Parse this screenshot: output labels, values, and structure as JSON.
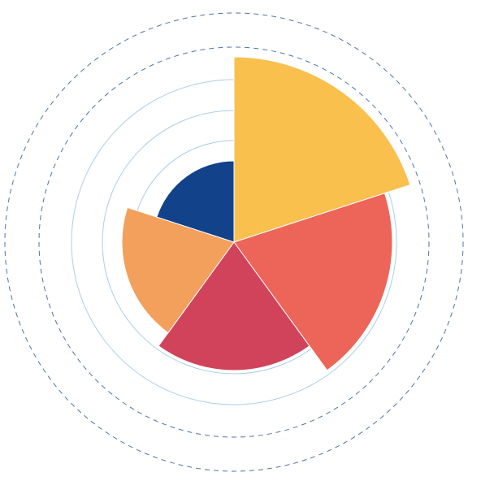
{
  "chart_data": {
    "type": "polar_area",
    "categories": [
      null,
      null,
      null,
      null,
      null
    ],
    "series": [
      {
        "values": [
          228,
          195,
          158,
          138,
          100
        ],
        "colors": [
          "#f9c04e",
          "#ec6558",
          "#d1435b",
          "#f3a05c",
          "#12428a"
        ]
      }
    ],
    "ylim": [
      0,
      300
    ],
    "yticks": [
      125,
      162,
      200
    ],
    "outer_rings": [
      240,
      282
    ],
    "grid": true
  }
}
